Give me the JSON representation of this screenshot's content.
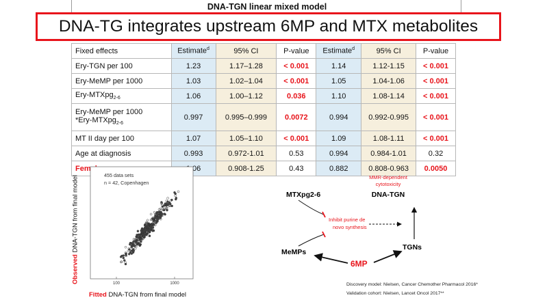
{
  "header": {
    "model_title": "DNA-TGN linear mixed model",
    "banner": "DNA-TG integrates upstream 6MP and MTX metabolites"
  },
  "table": {
    "columns": {
      "fixed_effects": "Fixed effects",
      "estimate": "Estimate",
      "estimate_sup": "d",
      "ci": "95% CI",
      "pvalue": "P-value"
    },
    "rows": [
      {
        "label": "Ery-TGN per 100",
        "est1": "1.23",
        "ci1": "1.17–1.28",
        "p1": "< 0.001",
        "est2": "1.14",
        "ci2": "1.12-1.15",
        "p2": "< 0.001"
      },
      {
        "label": "Ery-MeMP per 1000",
        "est1": "1.03",
        "ci1": "1.02–1.04",
        "p1": "< 0.001",
        "est2": "1.05",
        "ci2": "1.04-1.06",
        "p2": "< 0.001"
      },
      {
        "label": "Ery-MTXpg",
        "label_sub": "2-6",
        "est1": "1.06",
        "ci1": "1.00–1.12",
        "p1": "0.036",
        "est2": "1.10",
        "ci2": "1.08-1.14",
        "p2": "< 0.001"
      },
      {
        "label": "Ery-MeMP per 1000",
        "label_line2": "*Ery-MTXpg",
        "label_sub": "2-6",
        "est1": "0.997",
        "ci1": "0.995–0.999",
        "p1": "0.0072",
        "est2": "0.994",
        "ci2": "0.992-0.995",
        "p2": "< 0.001"
      },
      {
        "label": "MT II day per 100",
        "est1": "1.07",
        "ci1": "1.05–1.10",
        "p1": "< 0.001",
        "est2": "1.09",
        "ci2": "1.08-1.11",
        "p2": "< 0.001"
      },
      {
        "label": "Age at diagnosis",
        "est1": "0.993",
        "ci1": "0.972-1.01",
        "p1": "0.53",
        "est2": "0.994",
        "ci2": "0.984-1.01",
        "p2": "0.32"
      },
      {
        "label": "Female sex",
        "est1": "1.06",
        "ci1": "0.908-1.25",
        "p1": "0.43",
        "est2": "0.882",
        "ci2": "0.808-0.963",
        "p2": "0.0050"
      }
    ]
  },
  "scatter": {
    "note_line1": "455 data sets",
    "note_line2": "n = 42, Copenhagen",
    "tick_100": "100",
    "tick_1000": "1000",
    "y_label_red": "Observed",
    "y_label_rest": " DNA-TGN from final model",
    "x_label_red": "Fitted",
    "x_label_rest": " DNA-TGN  from final model"
  },
  "diagram": {
    "mtx": "MTXpg2-6",
    "memps": "MeMPs",
    "mp6": "6MP",
    "tgns": "TGNs",
    "dnatgn": "DNA-TGN",
    "mmr_line1": "MMR-dependent",
    "mmr_line2": "cytotoxicity",
    "inhibit_line1": "Inhibit purine de",
    "inhibit_line2": "novo synthesis"
  },
  "citations": {
    "discovery": "Discovery model: Nielsen,  Cancer Chemother Pharmacol 2016*",
    "validation": "Validation cohort: Nielsen, Lancet Oncol 2017**"
  },
  "colors": {
    "accent_red": "#e8141b",
    "estimate_fill": "#dcebf5",
    "ci_fill": "#f6efdd"
  }
}
